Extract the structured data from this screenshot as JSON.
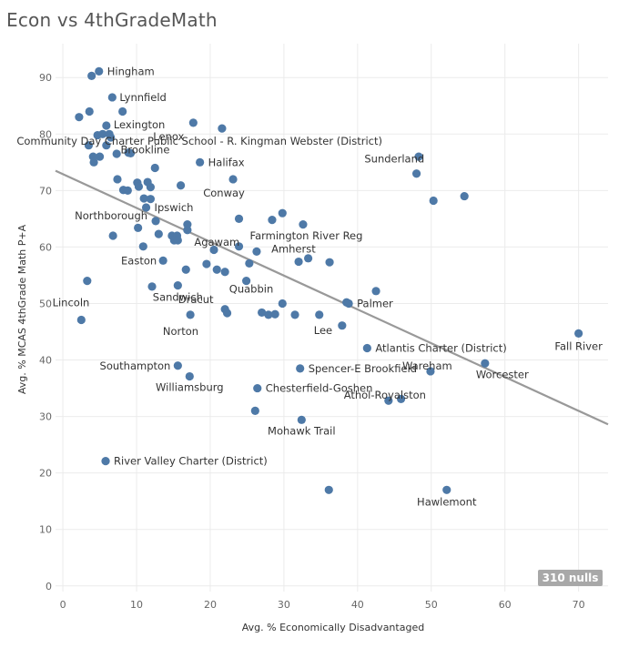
{
  "title": "Econ vs 4thGradeMath",
  "nulls_label": "310 nulls",
  "chart_data": {
    "type": "scatter",
    "title": "Econ vs 4thGradeMath",
    "xlabel": "Avg. % Economically Disadvantaged",
    "ylabel": "Avg. % MCAS 4thGrade Math P+A",
    "xlim": [
      -1,
      74
    ],
    "ylim": [
      -1,
      96
    ],
    "x_ticks": [
      0,
      10,
      20,
      30,
      40,
      50,
      60,
      70
    ],
    "y_ticks": [
      0,
      10,
      20,
      30,
      40,
      50,
      60,
      70,
      80,
      90
    ],
    "grid": true,
    "point_color": "#4e79a7",
    "trend_color": "#999999",
    "trend_line": {
      "x": [
        -1,
        74
      ],
      "y": [
        73.5,
        28.6
      ]
    },
    "points": [
      {
        "x": 4.9,
        "y": 91.1,
        "label": "Hingham"
      },
      {
        "x": 3.9,
        "y": 90.3
      },
      {
        "x": 6.7,
        "y": 86.5,
        "label": "Lynnfield"
      },
      {
        "x": 3.6,
        "y": 84.0
      },
      {
        "x": 8.1,
        "y": 84.0
      },
      {
        "x": 2.2,
        "y": 83.0
      },
      {
        "x": 17.7,
        "y": 82.0,
        "label": "Lenox"
      },
      {
        "x": 5.9,
        "y": 81.5,
        "label": "Lexington"
      },
      {
        "x": 21.6,
        "y": 81.0
      },
      {
        "x": 4.7,
        "y": 79.8
      },
      {
        "x": 5.4,
        "y": 80.0
      },
      {
        "x": 6.3,
        "y": 80.0
      },
      {
        "x": 6.5,
        "y": 79.4
      },
      {
        "x": 3.5,
        "y": 78.0
      },
      {
        "x": 5.9,
        "y": 78.0
      },
      {
        "x": 48.3,
        "y": 76.0,
        "label": "Community Day Charter Public School - R. Kingman Webster (District)"
      },
      {
        "x": 9.2,
        "y": 76.6,
        "label": "Brookline"
      },
      {
        "x": 4.1,
        "y": 76.0
      },
      {
        "x": 5.0,
        "y": 76.0
      },
      {
        "x": 7.3,
        "y": 76.5
      },
      {
        "x": 8.9,
        "y": 76.7
      },
      {
        "x": 4.2,
        "y": 75.0
      },
      {
        "x": 18.6,
        "y": 75.0,
        "label": "Halifax"
      },
      {
        "x": 12.5,
        "y": 74.0
      },
      {
        "x": 48.0,
        "y": 73.0
      },
      {
        "x": 23.1,
        "y": 72.0,
        "label": "Conway"
      },
      {
        "x": 7.4,
        "y": 72.0
      },
      {
        "x": 10.1,
        "y": 71.4
      },
      {
        "x": 11.5,
        "y": 71.5
      },
      {
        "x": 10.3,
        "y": 70.7
      },
      {
        "x": 11.9,
        "y": 70.6
      },
      {
        "x": 16.0,
        "y": 70.9
      },
      {
        "x": 8.2,
        "y": 70.1
      },
      {
        "x": 8.8,
        "y": 70.0
      },
      {
        "x": 54.5,
        "y": 69.0
      },
      {
        "x": 11.0,
        "y": 68.6
      },
      {
        "x": 11.9,
        "y": 68.5
      },
      {
        "x": 50.3,
        "y": 68.2,
        "label": "Sunderland"
      },
      {
        "x": 11.3,
        "y": 67.0,
        "label": "Ipswich"
      },
      {
        "x": 29.8,
        "y": 66.0
      },
      {
        "x": 23.9,
        "y": 65.0
      },
      {
        "x": 28.4,
        "y": 64.8
      },
      {
        "x": 12.6,
        "y": 64.6,
        "label": "Northborough"
      },
      {
        "x": 32.6,
        "y": 64.0
      },
      {
        "x": 16.9,
        "y": 64.0
      },
      {
        "x": 10.2,
        "y": 63.4
      },
      {
        "x": 16.9,
        "y": 63.0
      },
      {
        "x": 13.0,
        "y": 62.3
      },
      {
        "x": 14.8,
        "y": 62.0
      },
      {
        "x": 15.5,
        "y": 62.0
      },
      {
        "x": 6.8,
        "y": 62.0
      },
      {
        "x": 15.1,
        "y": 61.2
      },
      {
        "x": 15.6,
        "y": 61.2,
        "label": "Agawam"
      },
      {
        "x": 10.9,
        "y": 60.1
      },
      {
        "x": 23.9,
        "y": 60.1,
        "label": "Farmington River Reg"
      },
      {
        "x": 20.5,
        "y": 59.5
      },
      {
        "x": 26.3,
        "y": 59.2
      },
      {
        "x": 33.3,
        "y": 58.0
      },
      {
        "x": 13.6,
        "y": 57.6,
        "label": "Easton"
      },
      {
        "x": 32.0,
        "y": 57.4,
        "label": "Amherst"
      },
      {
        "x": 36.2,
        "y": 57.3
      },
      {
        "x": 25.3,
        "y": 57.1
      },
      {
        "x": 19.5,
        "y": 57.0
      },
      {
        "x": 16.7,
        "y": 56.0
      },
      {
        "x": 20.9,
        "y": 56.0
      },
      {
        "x": 22.0,
        "y": 55.6
      },
      {
        "x": 3.3,
        "y": 54.0
      },
      {
        "x": 24.9,
        "y": 54.0
      },
      {
        "x": 12.1,
        "y": 53.0
      },
      {
        "x": 15.6,
        "y": 53.2,
        "label": "Sandwich"
      },
      {
        "x": 42.5,
        "y": 52.2
      },
      {
        "x": 29.8,
        "y": 50.0,
        "label": "Quabbin"
      },
      {
        "x": 38.5,
        "y": 50.2
      },
      {
        "x": 38.8,
        "y": 50.0,
        "label": "Palmer"
      },
      {
        "x": 22.0,
        "y": 49.0
      },
      {
        "x": 22.3,
        "y": 48.3,
        "label": "Dracut"
      },
      {
        "x": 27.0,
        "y": 48.4
      },
      {
        "x": 27.9,
        "y": 48.0
      },
      {
        "x": 28.8,
        "y": 48.1
      },
      {
        "x": 31.5,
        "y": 48.0
      },
      {
        "x": 34.8,
        "y": 48.0,
        "label": "Lee"
      },
      {
        "x": 17.3,
        "y": 48.0,
        "label": "Norton"
      },
      {
        "x": 2.5,
        "y": 47.1,
        "label": "Lincoln"
      },
      {
        "x": 37.9,
        "y": 46.1
      },
      {
        "x": 70.0,
        "y": 44.7,
        "label": "Fall River"
      },
      {
        "x": 41.3,
        "y": 42.1,
        "label": "Atlantis Charter (District)"
      },
      {
        "x": 15.6,
        "y": 39.0,
        "label": "Southampton"
      },
      {
        "x": 32.2,
        "y": 38.5,
        "label": "Spencer-E Brookfield"
      },
      {
        "x": 57.3,
        "y": 39.4,
        "label": "Worcester"
      },
      {
        "x": 49.9,
        "y": 38.0,
        "label": "Wareham"
      },
      {
        "x": 17.2,
        "y": 37.1,
        "label": "Williamsburg"
      },
      {
        "x": 26.4,
        "y": 35.0,
        "label": "Chesterfield-Goshen"
      },
      {
        "x": 44.2,
        "y": 32.8,
        "label": "Athol-Royalston"
      },
      {
        "x": 45.9,
        "y": 33.1
      },
      {
        "x": 26.1,
        "y": 31.0
      },
      {
        "x": 32.4,
        "y": 29.4,
        "label": "Mohawk Trail"
      },
      {
        "x": 5.8,
        "y": 22.1,
        "label": "River Valley Charter (District)"
      },
      {
        "x": 36.1,
        "y": 17.0
      },
      {
        "x": 52.1,
        "y": 17.0,
        "label": "Hawlemont"
      }
    ]
  }
}
